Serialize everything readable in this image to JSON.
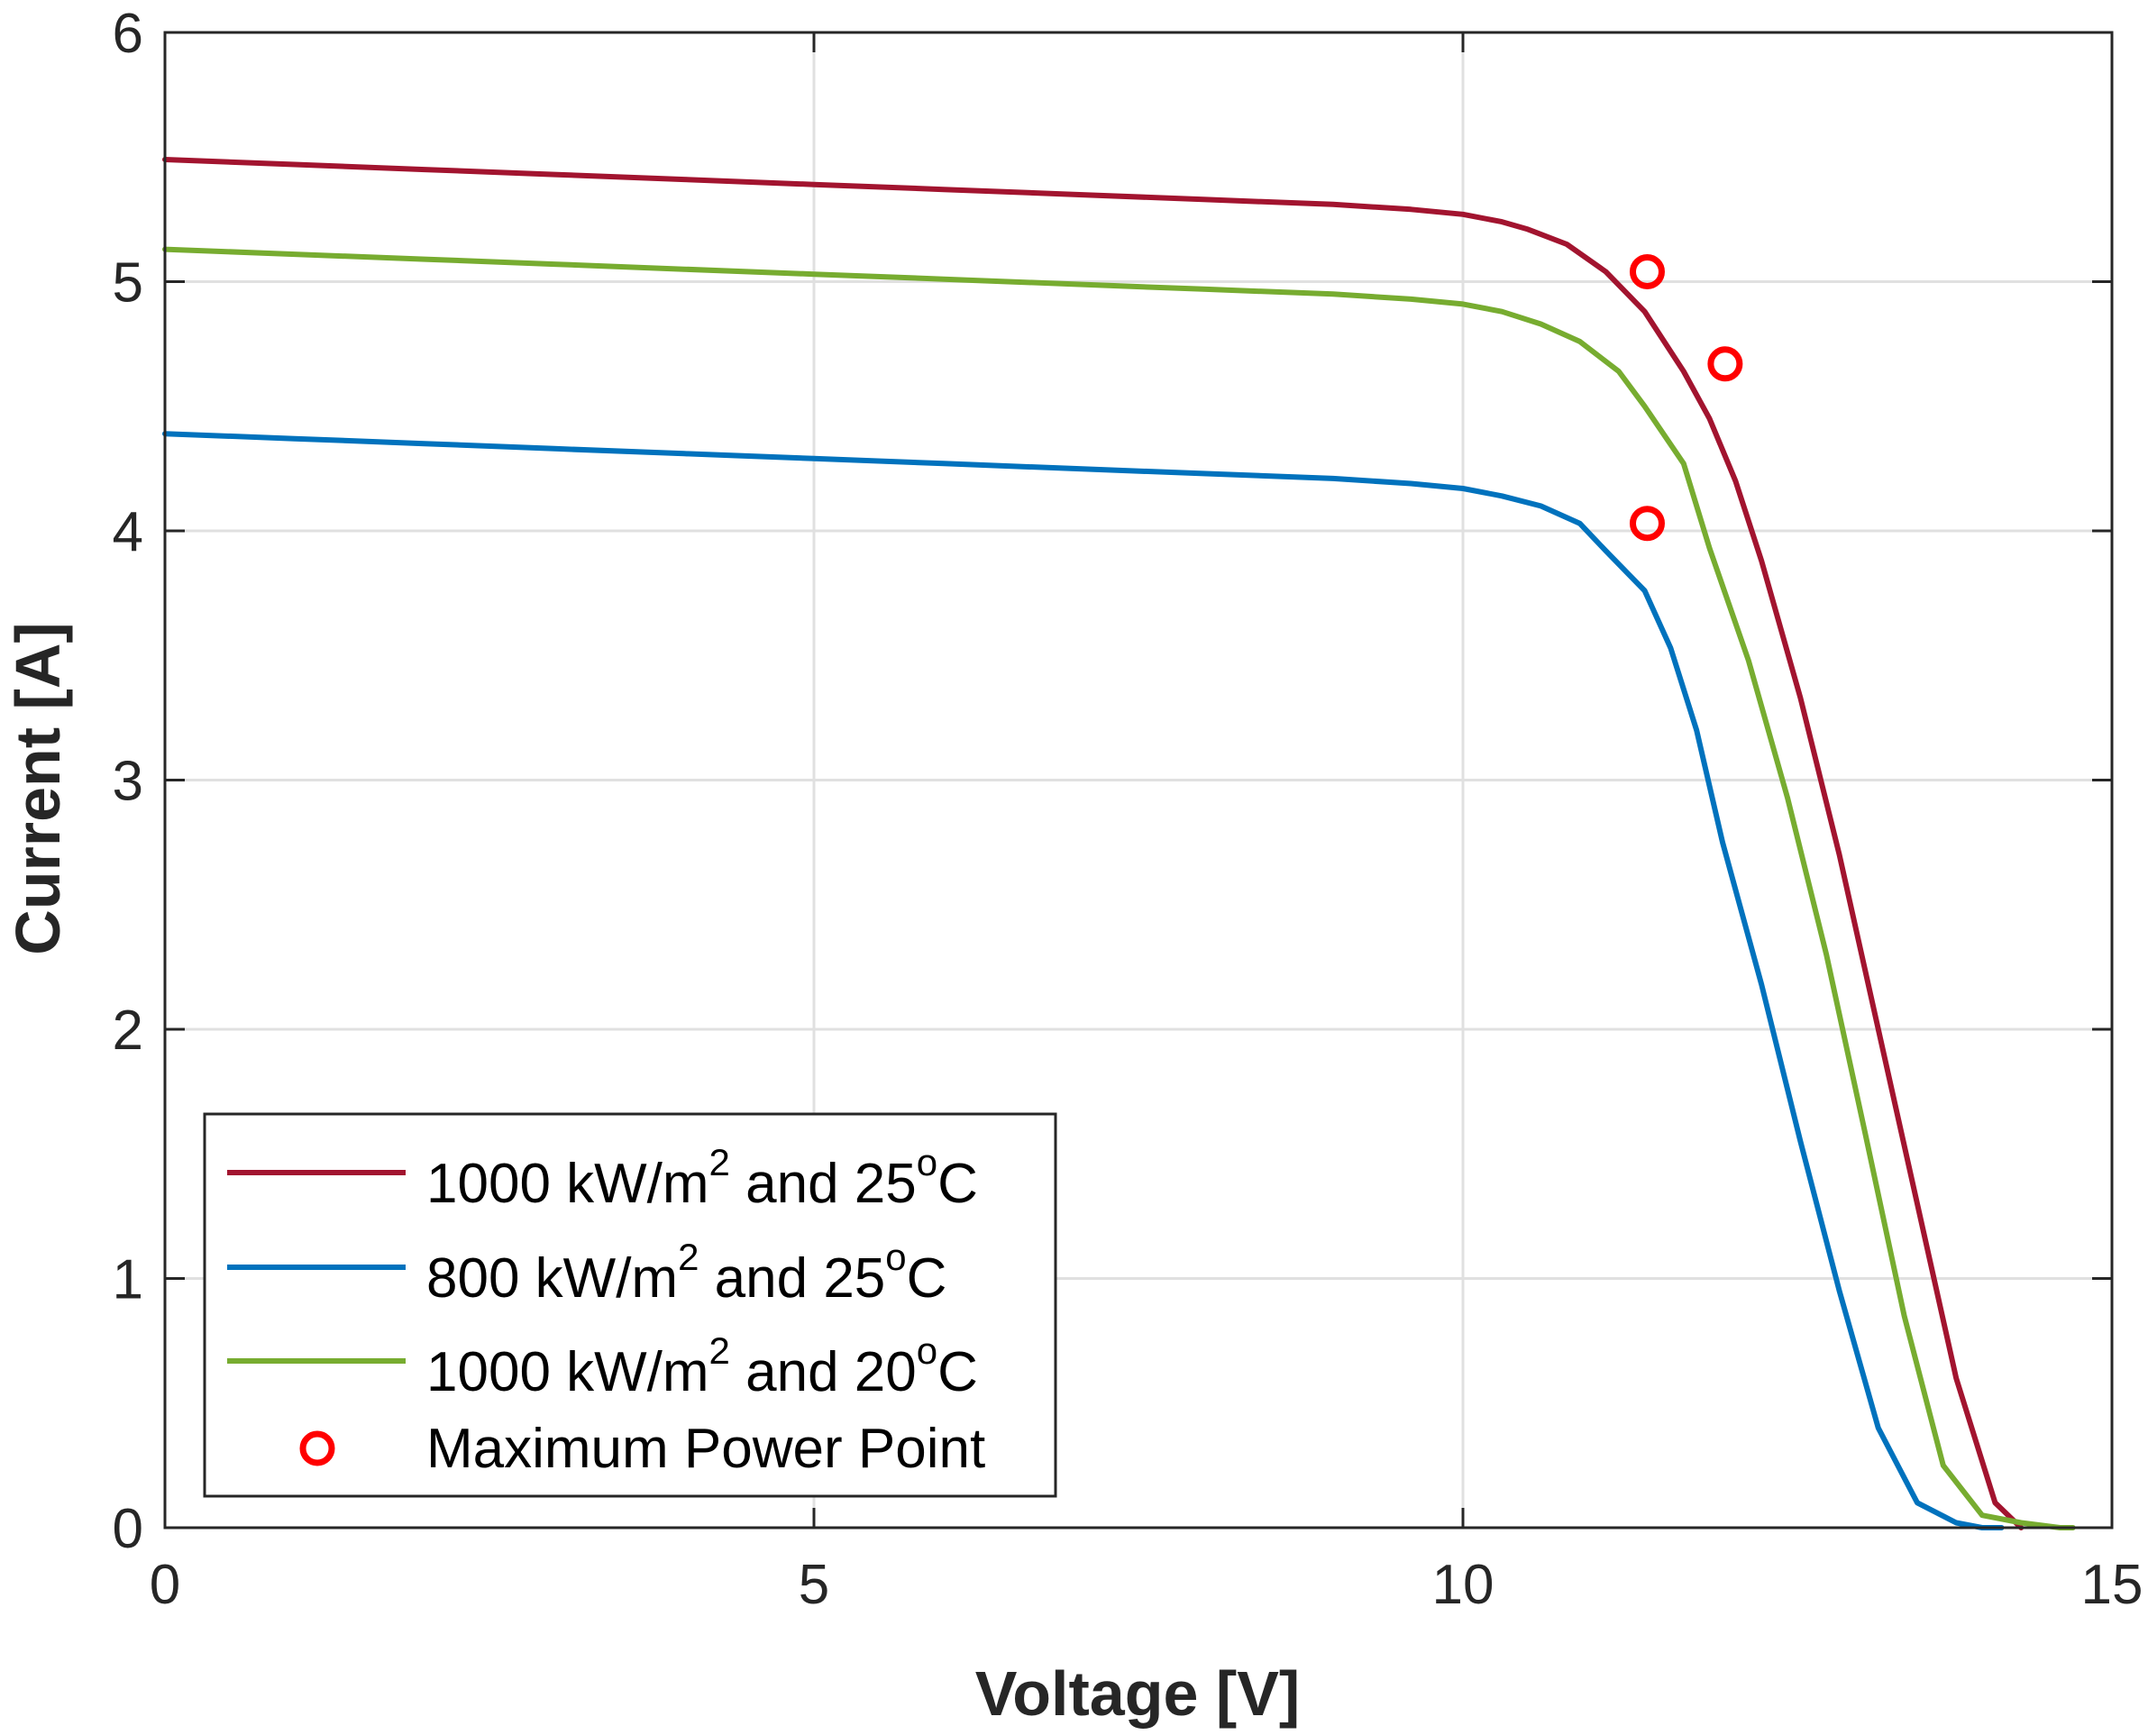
{
  "chart_data": {
    "type": "line",
    "title": "",
    "xlabel": "Voltage [V]",
    "ylabel": "Current [A]",
    "xlim": [
      0,
      15
    ],
    "ylim": [
      0,
      6
    ],
    "xticks": [
      0,
      5,
      10,
      15
    ],
    "yticks": [
      0,
      1,
      2,
      3,
      4,
      5,
      6
    ],
    "xtick_labels": [
      "0",
      "5",
      "10",
      "15"
    ],
    "ytick_labels": [
      "0",
      "1",
      "2",
      "3",
      "4",
      "5",
      "6"
    ],
    "grid": true,
    "legend_position": "bottom-left",
    "series": [
      {
        "name": "1000 kW/m2 and 25oC",
        "legend": {
          "base": "1000 kW/m",
          "sup1": "2",
          "mid": " and 25",
          "sup2": "o",
          "end": "C"
        },
        "color": "#A2142F",
        "x": [
          0,
          1,
          2,
          3,
          4,
          5,
          6,
          7,
          8,
          9,
          9.6,
          10.0,
          10.3,
          10.5,
          10.8,
          11.1,
          11.4,
          11.7,
          11.9,
          12.1,
          12.3,
          12.6,
          12.9,
          13.2,
          13.5,
          13.8,
          14.1,
          14.3
        ],
        "y": [
          5.49,
          5.47,
          5.45,
          5.43,
          5.41,
          5.39,
          5.37,
          5.35,
          5.33,
          5.31,
          5.29,
          5.27,
          5.24,
          5.21,
          5.15,
          5.04,
          4.88,
          4.64,
          4.45,
          4.2,
          3.88,
          3.33,
          2.7,
          2.0,
          1.3,
          0.6,
          0.1,
          0.0
        ]
      },
      {
        "name": "800 kW/m2 and 25oC",
        "legend": {
          "base": "800 kW/m",
          "sup1": "2",
          "mid": " and 25",
          "sup2": "o",
          "end": "C"
        },
        "color": "#0072BD",
        "x": [
          0,
          1,
          2,
          3,
          4,
          5,
          6,
          7,
          8,
          9,
          9.6,
          10.0,
          10.3,
          10.6,
          10.9,
          11.1,
          11.4,
          11.6,
          11.8,
          12.0,
          12.3,
          12.6,
          12.9,
          13.2,
          13.5,
          13.8,
          14.0,
          14.15
        ],
        "y": [
          4.39,
          4.37,
          4.35,
          4.33,
          4.31,
          4.29,
          4.27,
          4.25,
          4.23,
          4.21,
          4.19,
          4.17,
          4.14,
          4.1,
          4.03,
          3.92,
          3.76,
          3.53,
          3.2,
          2.75,
          2.18,
          1.55,
          0.95,
          0.4,
          0.1,
          0.02,
          0.0,
          0.0
        ]
      },
      {
        "name": "1000 kW/m2 and 20oC",
        "legend": {
          "base": "1000 kW/m",
          "sup1": "2",
          "mid": " and 20",
          "sup2": "o",
          "end": "C"
        },
        "color": "#77AC30",
        "x": [
          0,
          1,
          2,
          3,
          4,
          5,
          6,
          7,
          8,
          9,
          9.6,
          10.0,
          10.3,
          10.6,
          10.9,
          11.2,
          11.4,
          11.7,
          11.9,
          12.2,
          12.5,
          12.8,
          13.1,
          13.4,
          13.7,
          14.0,
          14.3,
          14.6,
          14.7
        ],
        "y": [
          5.13,
          5.11,
          5.09,
          5.07,
          5.05,
          5.03,
          5.01,
          4.99,
          4.97,
          4.95,
          4.93,
          4.91,
          4.88,
          4.83,
          4.76,
          4.64,
          4.5,
          4.27,
          3.93,
          3.48,
          2.93,
          2.3,
          1.58,
          0.85,
          0.25,
          0.05,
          0.02,
          0.0,
          0.0
        ]
      }
    ],
    "markers": {
      "name": "Maximum Power Point",
      "color": "#FF0000",
      "points": [
        {
          "x": 11.42,
          "y": 5.04
        },
        {
          "x": 11.42,
          "y": 4.03
        },
        {
          "x": 12.02,
          "y": 4.67
        }
      ]
    }
  }
}
